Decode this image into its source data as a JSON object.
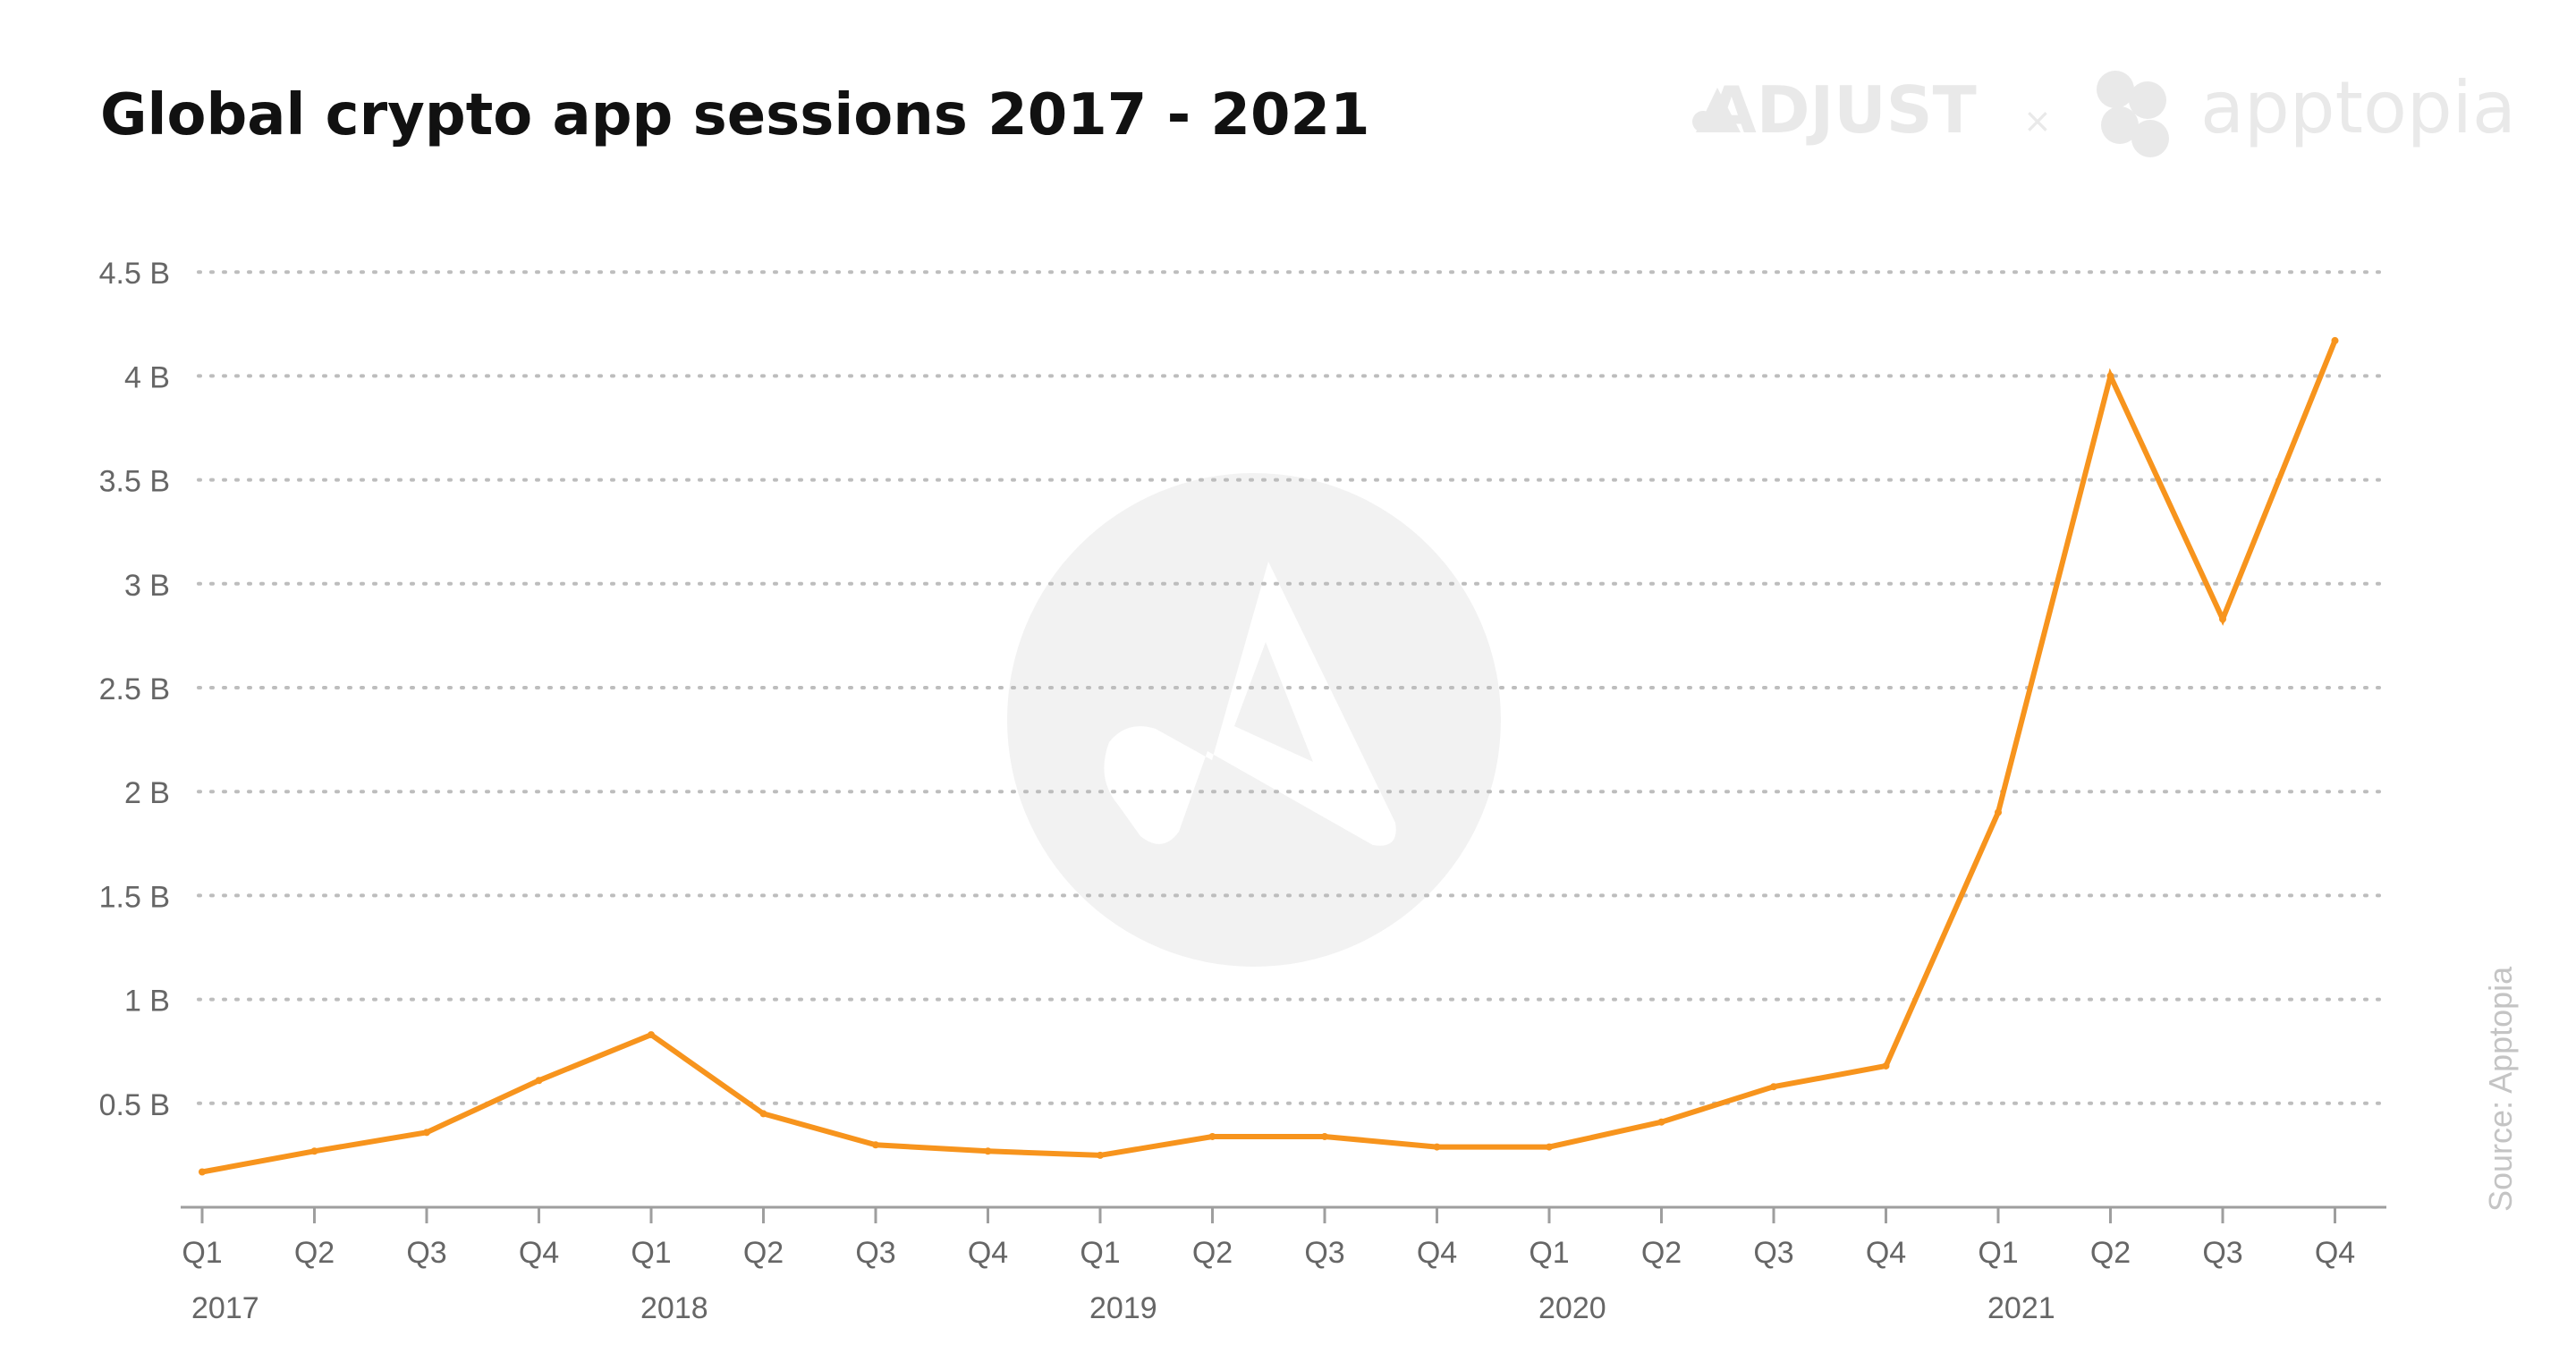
{
  "page": {
    "title": "Global crypto app sessions 2017 - 2021",
    "source": "Source:  Apptopia",
    "brands": {
      "left": "ADJUST",
      "separator": "×",
      "right": "apptopia"
    },
    "colors": {
      "line": "#f7941d",
      "grid": "#bdbdbd",
      "axis": "#9e9e9e",
      "brand": "#e9e9e9",
      "watermark": "#f2f2f2"
    },
    "watermark_icon": "adjust-logo-icon"
  },
  "chart_data": {
    "type": "line",
    "title": "Global crypto app sessions 2017 - 2021",
    "xlabel": "",
    "ylabel": "",
    "categories": [
      "Q1",
      "Q2",
      "Q3",
      "Q4",
      "Q1",
      "Q2",
      "Q3",
      "Q4",
      "Q1",
      "Q2",
      "Q3",
      "Q4",
      "Q1",
      "Q2",
      "Q3",
      "Q4",
      "Q1",
      "Q2",
      "Q3",
      "Q4"
    ],
    "year_labels": [
      {
        "label": "2017",
        "index": 0
      },
      {
        "label": "2018",
        "index": 4
      },
      {
        "label": "2019",
        "index": 8
      },
      {
        "label": "2020",
        "index": 12
      },
      {
        "label": "2021",
        "index": 16
      }
    ],
    "series": [
      {
        "values": [
          0.17,
          0.27,
          0.36,
          0.61,
          0.83,
          0.45,
          0.3,
          0.27,
          0.25,
          0.34,
          0.34,
          0.29,
          0.29,
          0.41,
          0.58,
          0.68,
          1.9,
          4.0,
          2.83,
          4.17
        ]
      }
    ],
    "yticks": [
      {
        "value": 0.5,
        "label": "0.5 B"
      },
      {
        "value": 1.0,
        "label": "1 B"
      },
      {
        "value": 1.5,
        "label": "1.5 B"
      },
      {
        "value": 2.0,
        "label": "2 B"
      },
      {
        "value": 2.5,
        "label": "2.5 B"
      },
      {
        "value": 3.0,
        "label": "3 B"
      },
      {
        "value": 3.5,
        "label": "3.5 B"
      },
      {
        "value": 4.0,
        "label": "4 B"
      },
      {
        "value": 4.5,
        "label": "4.5 B"
      }
    ],
    "ylim": [
      0,
      4.5
    ],
    "grid": true,
    "legend": "none"
  }
}
